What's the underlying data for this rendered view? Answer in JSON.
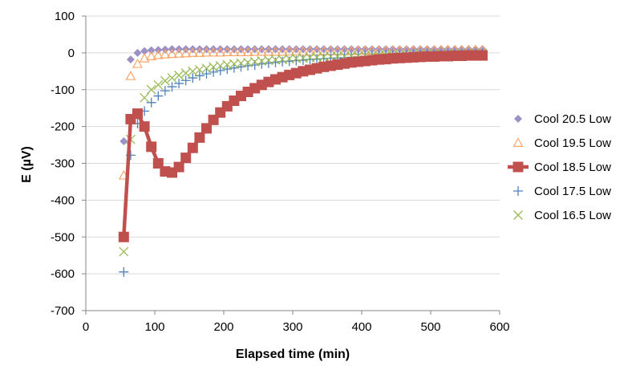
{
  "chart_data": {
    "type": "scatter",
    "xlabel": "Elapsed time (min)",
    "ylabel": "E (µV)",
    "xlim": [
      0,
      600
    ],
    "ylim": [
      -700,
      100
    ],
    "x_ticks": [
      "0",
      "100",
      "200",
      "300",
      "400",
      "500",
      "600"
    ],
    "y_ticks": [
      "100",
      "0",
      "-100",
      "-200",
      "-300",
      "-400",
      "-500",
      "-600",
      "-700"
    ],
    "grid": "horizontal",
    "legend_position": "right",
    "series": [
      {
        "name": "Cool 20.5 Low",
        "marker": "diamond",
        "color": "#9e8fc4",
        "x": [
          55,
          65,
          75,
          85,
          95,
          105,
          115,
          125,
          135,
          145,
          155,
          165,
          175,
          185,
          195,
          205,
          215,
          225,
          235,
          245,
          255,
          265,
          275,
          285,
          295,
          305,
          315,
          325,
          335,
          345,
          355,
          365,
          375,
          385,
          395,
          405,
          415,
          425,
          435,
          445,
          455,
          465,
          475,
          485,
          495,
          505,
          515,
          525,
          535,
          545,
          555,
          565,
          575
        ],
        "y": [
          -240,
          -18,
          0,
          5,
          7,
          8,
          9,
          10,
          10,
          10,
          10,
          10,
          10,
          10,
          10,
          10,
          10,
          10,
          10,
          10,
          10,
          10,
          10,
          10,
          10,
          10,
          10,
          10,
          10,
          10,
          10,
          10,
          10,
          10,
          10,
          10,
          10,
          10,
          10,
          10,
          10,
          10,
          10,
          10,
          10,
          10,
          10,
          10,
          10,
          10,
          10,
          10,
          10
        ]
      },
      {
        "name": "Cool 19.5 Low",
        "marker": "triangle",
        "color": "#f7a76a",
        "x": [
          55,
          65,
          75,
          85,
          95,
          105,
          115,
          125,
          135,
          145,
          155,
          165,
          175,
          185,
          195,
          205,
          215,
          225,
          235,
          245,
          255,
          265,
          275,
          285,
          295,
          305,
          315,
          325,
          335,
          345,
          355,
          365,
          375,
          385,
          395,
          405,
          415,
          425,
          435,
          445,
          455,
          465,
          475,
          485,
          495,
          505,
          515,
          525,
          535,
          545,
          555,
          565,
          575
        ],
        "y": [
          -333,
          -63,
          -30,
          -15,
          -9,
          -6,
          -4,
          -3,
          -2,
          -1,
          0,
          0,
          1,
          1,
          1,
          2,
          2,
          2,
          2,
          3,
          3,
          3,
          3,
          3,
          4,
          4,
          4,
          4,
          4,
          5,
          5,
          5,
          5,
          5,
          6,
          6,
          6,
          6,
          6,
          6,
          7,
          7,
          7,
          7,
          7,
          7,
          8,
          8,
          8,
          8,
          8,
          8,
          8
        ]
      },
      {
        "name": "Cool 18.5 Low",
        "marker": "square",
        "color": "#c0504d",
        "x": [
          55,
          65,
          75,
          85,
          95,
          105,
          115,
          125,
          135,
          145,
          155,
          165,
          175,
          185,
          195,
          205,
          215,
          225,
          235,
          245,
          255,
          265,
          275,
          285,
          295,
          305,
          315,
          325,
          335,
          345,
          355,
          365,
          375,
          385,
          395,
          405,
          415,
          425,
          435,
          445,
          455,
          465,
          475,
          485,
          495,
          505,
          515,
          525,
          535,
          545,
          555,
          565,
          575
        ],
        "y": [
          -500,
          -180,
          -165,
          -200,
          -255,
          -300,
          -322,
          -325,
          -310,
          -285,
          -258,
          -230,
          -205,
          -182,
          -162,
          -145,
          -130,
          -117,
          -106,
          -96,
          -87,
          -79,
          -72,
          -66,
          -60,
          -55,
          -50,
          -46,
          -42,
          -38,
          -35,
          -32,
          -29,
          -26,
          -24,
          -22,
          -20,
          -18,
          -17,
          -15,
          -14,
          -13,
          -12,
          -11,
          -10,
          -10,
          -9,
          -9,
          -8,
          -8,
          -7,
          -7,
          -7
        ]
      },
      {
        "name": "Cool 17.5 Low",
        "marker": "plus",
        "color": "#4f81bd",
        "x": [
          55,
          65,
          75,
          85,
          95,
          105,
          115,
          125,
          135,
          145,
          155,
          165,
          175,
          185,
          195,
          205,
          215,
          225,
          235,
          245,
          255,
          265,
          275,
          285,
          295,
          305,
          315,
          325,
          335,
          345,
          355,
          365,
          375,
          385,
          395,
          405,
          415,
          425,
          435,
          445,
          455,
          465,
          475,
          485,
          495,
          505,
          515,
          525,
          535,
          545,
          555,
          565,
          575
        ],
        "y": [
          -595,
          -278,
          -192,
          -158,
          -135,
          -117,
          -103,
          -92,
          -83,
          -75,
          -68,
          -62,
          -57,
          -52,
          -48,
          -44,
          -41,
          -38,
          -35,
          -33,
          -30,
          -28,
          -26,
          -24,
          -23,
          -21,
          -20,
          -18,
          -17,
          -16,
          -15,
          -14,
          -13,
          -12,
          -11,
          -10,
          -10,
          -9,
          -8,
          -8,
          -7,
          -7,
          -6,
          -6,
          -5,
          -5,
          -5,
          -4,
          -4,
          -4,
          -4,
          -3,
          -3
        ]
      },
      {
        "name": "Cool 16.5 Low",
        "marker": "cross",
        "color": "#9bbb59",
        "x": [
          55,
          65,
          75,
          85,
          95,
          105,
          115,
          125,
          135,
          145,
          155,
          165,
          175,
          185,
          195,
          205,
          215,
          225,
          235,
          245,
          255,
          265,
          275,
          285,
          295,
          305,
          315,
          325,
          335,
          345,
          355,
          365,
          375,
          385,
          395,
          405,
          415,
          425,
          435,
          445,
          455,
          465,
          475,
          485,
          495,
          505,
          515,
          525,
          535,
          545,
          555,
          565,
          575
        ],
        "y": [
          -540,
          -235,
          -165,
          -122,
          -100,
          -87,
          -76,
          -68,
          -61,
          -55,
          -50,
          -46,
          -42,
          -38,
          -35,
          -32,
          -30,
          -28,
          -26,
          -24,
          -22,
          -20,
          -19,
          -18,
          -16,
          -15,
          -14,
          -13,
          -12,
          -11,
          -10,
          -10,
          -9,
          -8,
          -8,
          -7,
          -7,
          -6,
          -6,
          -5,
          -5,
          -5,
          -4,
          -4,
          -4,
          -3,
          -3,
          -3,
          -3,
          -2,
          -2,
          -2,
          -2
        ]
      }
    ]
  }
}
